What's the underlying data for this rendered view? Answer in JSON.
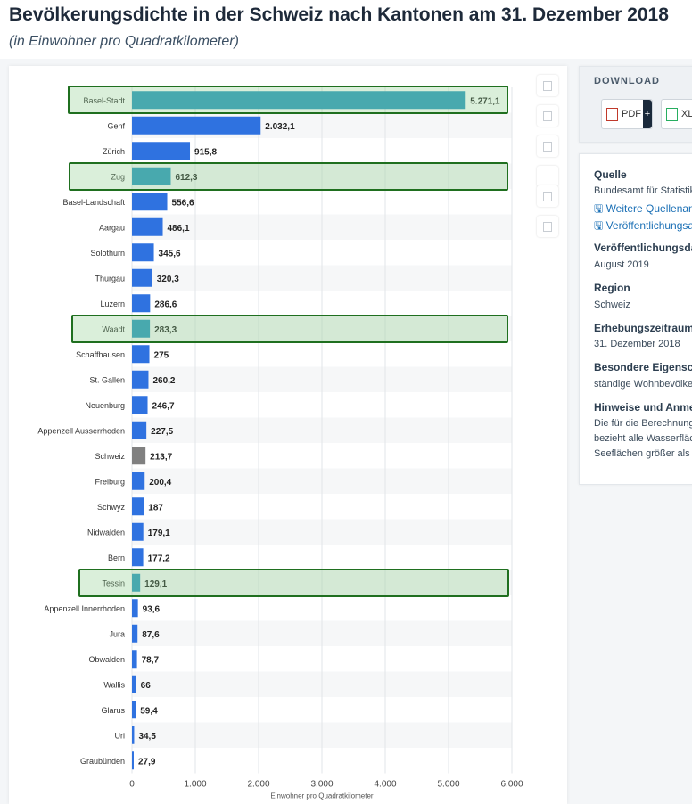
{
  "page": {
    "title": "Bevölkerungsdichte in der Schweiz nach Kantonen am 31. Dezember 2018",
    "subtitle": "(in Einwohner pro Quadratkilometer)"
  },
  "download": {
    "title": "DOWNLOAD",
    "pdf_label": "PDF",
    "pdf_plus": "+",
    "xls_label": "XL"
  },
  "info": {
    "quelle_h": "Quelle",
    "quelle_t": "Bundesamt für Statistik",
    "link1": "Weitere Quellenan",
    "link2": "Veröffentlichungsa",
    "veroeff_h": "Veröffentlichungsda",
    "veroeff_t": "August 2019",
    "region_h": "Region",
    "region_t": "Schweiz",
    "erhebung_h": "Erhebungszeitraum",
    "erhebung_t": "31. Dezember 2018",
    "besondere_h": "Besondere Eigensc",
    "besondere_t": "ständige Wohnbevölker",
    "hinweise_h": "Hinweise und Anme",
    "hinweise_t1": "Die für die Berechnung",
    "hinweise_t2": "bezieht alle Wasserfläc",
    "hinweise_t3": "Seeflächen größer als"
  },
  "colors": {
    "bar": "#2f72e0",
    "highlight_bar": "#2898bf",
    "national_bar": "#808080",
    "highlight_fill": "#8ccd8c",
    "highlight_border": "#1f6f1f"
  },
  "chart_data": {
    "type": "bar",
    "orientation": "horizontal",
    "categories": [
      "Basel-Stadt",
      "Genf",
      "Zürich",
      "Zug",
      "Basel-Landschaft",
      "Aargau",
      "Solothurn",
      "Thurgau",
      "Luzern",
      "Waadt",
      "Schaffhausen",
      "St. Gallen",
      "Neuenburg",
      "Appenzell Ausserrhoden",
      "Schweiz",
      "Freiburg",
      "Schwyz",
      "Nidwalden",
      "Bern",
      "Tessin",
      "Appenzell Innerrhoden",
      "Jura",
      "Obwalden",
      "Wallis",
      "Glarus",
      "Uri",
      "Graubünden"
    ],
    "values": [
      5271.1,
      2032.1,
      915.8,
      612.3,
      556.6,
      486.1,
      345.6,
      320.3,
      286.6,
      283.3,
      275,
      260.2,
      246.7,
      227.5,
      213.7,
      200.4,
      187,
      179.1,
      177.2,
      129.1,
      93.6,
      87.6,
      78.7,
      66,
      59.4,
      34.5,
      27.9
    ],
    "value_labels": [
      "5.271,1",
      "2.032,1",
      "915,8",
      "612,3",
      "556,6",
      "486,1",
      "345,6",
      "320,3",
      "286,6",
      "283,3",
      "275",
      "260,2",
      "246,7",
      "227,5",
      "213,7",
      "200,4",
      "187",
      "179,1",
      "177,2",
      "129,1",
      "93,6",
      "87,6",
      "78,7",
      "66",
      "59,4",
      "34,5",
      "27,9"
    ],
    "highlighted": [
      "Basel-Stadt",
      "Zug",
      "Waadt",
      "Tessin"
    ],
    "national": "Schweiz",
    "xlabel": "Einwohner pro Quadratkilometer",
    "ylabel": "",
    "xlim": [
      0,
      6000
    ],
    "xticks": [
      0,
      1000,
      2000,
      3000,
      4000,
      5000,
      6000
    ],
    "xtick_labels": [
      "0",
      "1.000",
      "2.000",
      "3.000",
      "4.000",
      "5.000",
      "6.000"
    ],
    "grid": true
  }
}
